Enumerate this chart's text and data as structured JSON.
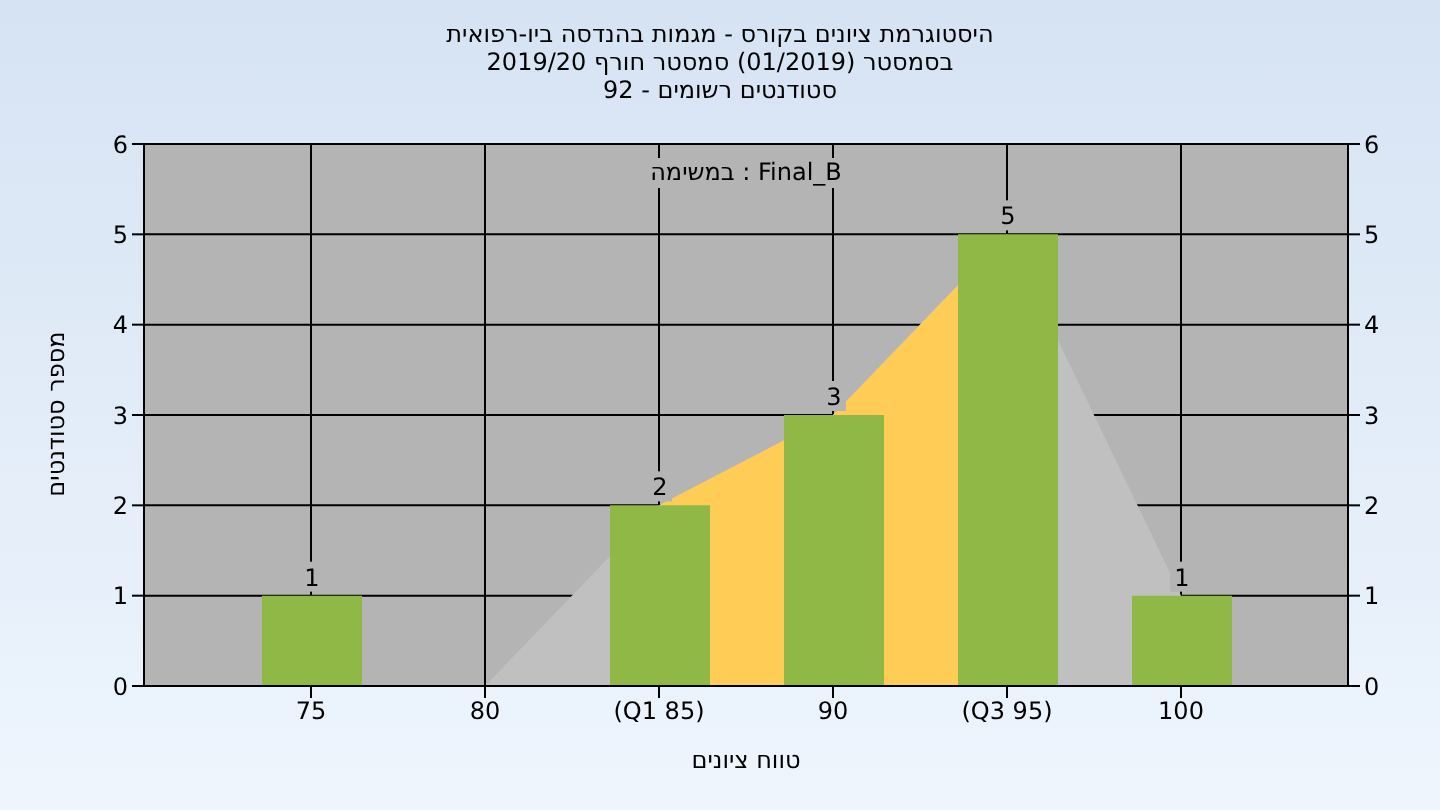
{
  "chart_data": {
    "type": "bar",
    "title": "היסטוגרמת ציונים בקורס - מגמות בהנדסה ביו-רפואית",
    "subtitle": "בסמסטר  (01/2019)  סמסטר חורף 2019/20\nסטודנטים רשומים - 92",
    "xlabel": "טווח ציונים",
    "ylabel": "מספר סטודנטים",
    "annotations": [
      "במשימה : Final_B"
    ],
    "categories": [
      "75",
      "80",
      "(Q1 85)",
      "90",
      "(Q3 95)",
      "100"
    ],
    "series": [
      {
        "type": "area",
        "color": "#c0c0c0",
        "values": [
          null,
          0,
          2,
          3,
          5,
          1
        ]
      },
      {
        "type": "area",
        "color": "#ffcc55",
        "values": [
          null,
          null,
          2,
          3,
          5,
          null
        ]
      },
      {
        "color": "#8fb847",
        "values": [
          1,
          0,
          2,
          3,
          5,
          1
        ],
        "value_labels": [
          "1",
          null,
          "2",
          "3",
          "5",
          "1"
        ]
      }
    ],
    "ylim": [
      0,
      6
    ],
    "yticks": [
      0,
      1,
      2,
      3,
      4,
      5,
      6
    ],
    "y2lim": [
      0,
      6
    ],
    "y2ticks": [
      0,
      1,
      2,
      3,
      4,
      5,
      6
    ],
    "grid": true,
    "legend": false
  }
}
